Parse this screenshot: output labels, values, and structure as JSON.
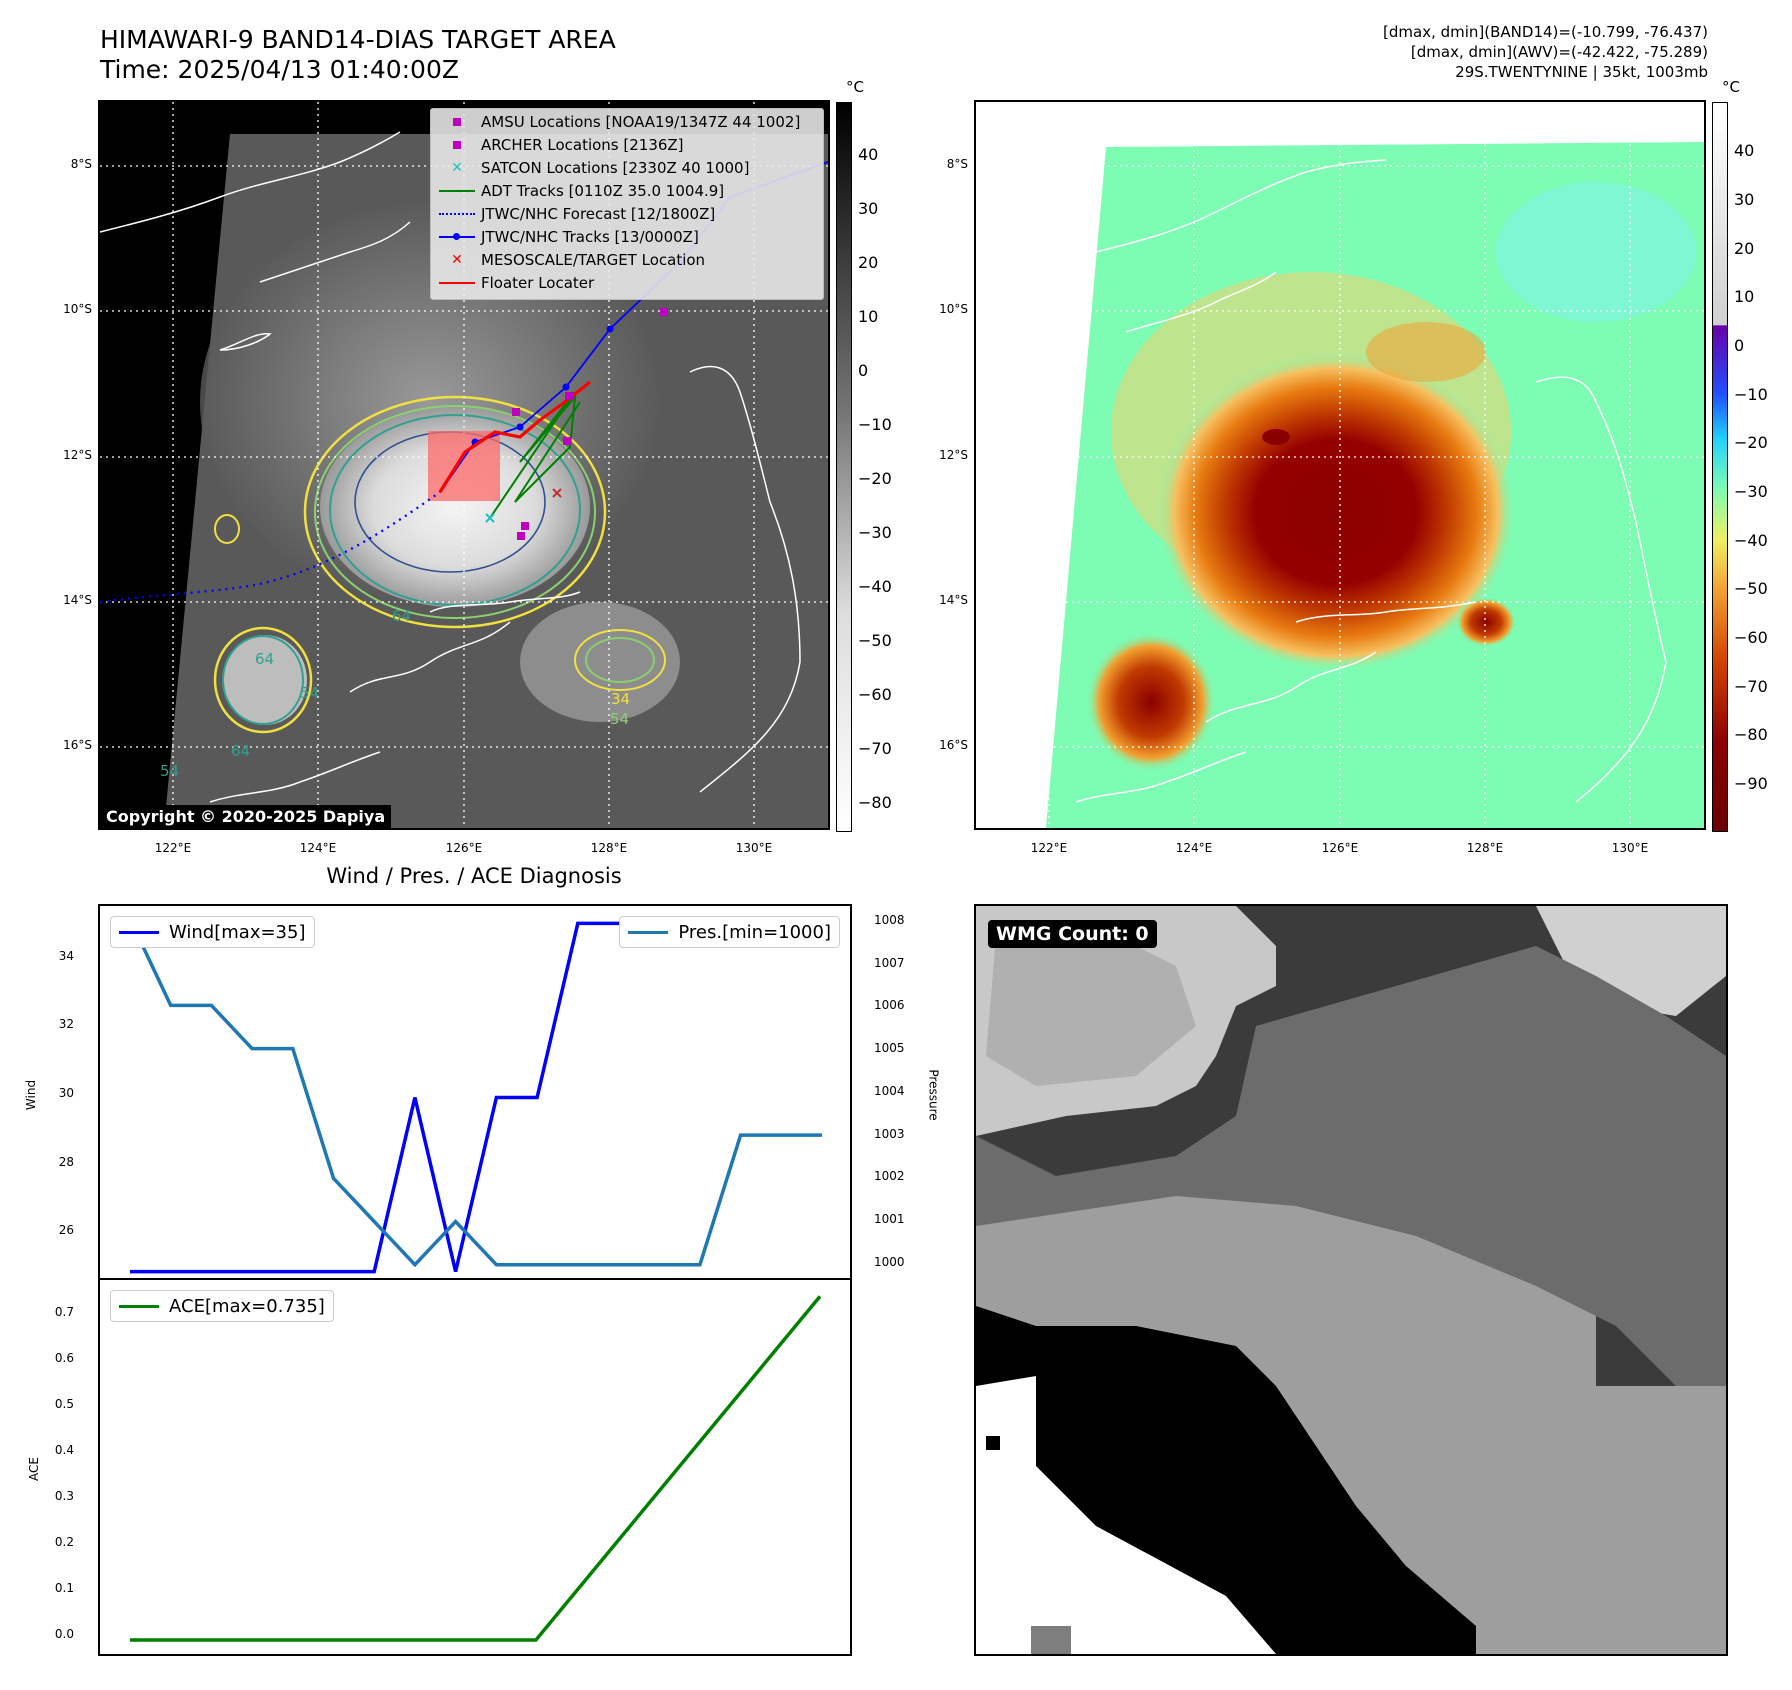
{
  "header": {
    "title_line1": "HIMAWARI-9 BAND14-DIAS TARGET AREA",
    "title_line2": "Time: 2025/04/13 01:40:00Z",
    "info_line1": "[dmax, dmin](BAND14)=(-10.799, -76.437)",
    "info_line2": "[dmax, dmin](AWV)=(-42.422, -75.289)",
    "info_line3": "29S.TWENTYNINE | 35kt, 1003mb"
  },
  "map": {
    "lat_labels": [
      "8°S",
      "10°S",
      "12°S",
      "14°S",
      "16°S"
    ],
    "lon_labels": [
      "122°E",
      "124°E",
      "126°E",
      "128°E",
      "130°E"
    ],
    "colorbar_unit": "°C",
    "bw_colorbar_ticks": [
      "40",
      "30",
      "20",
      "10",
      "0",
      "−10",
      "−20",
      "−30",
      "−40",
      "−50",
      "−60",
      "−70",
      "−80"
    ],
    "color_colorbar_ticks": [
      "40",
      "30",
      "20",
      "10",
      "0",
      "−10",
      "−20",
      "−30",
      "−40",
      "−50",
      "−60",
      "−70",
      "−80",
      "−90"
    ],
    "copyright": "Copyright © 2020-2025 Dapiya",
    "contour_labels": [
      "64",
      "64",
      "64",
      "54",
      "54",
      "34",
      "54"
    ],
    "legend": [
      {
        "label": "AMSU Locations [NOAA19/1347Z 44 1002]",
        "symbol": "square",
        "color": "#c000c0"
      },
      {
        "label": "ARCHER Locations [2136Z]",
        "symbol": "square",
        "color": "#c000c0"
      },
      {
        "label": "SATCON Locations [2330Z 40 1000]",
        "symbol": "x",
        "color": "#20c0c0"
      },
      {
        "label": "ADT Tracks [0110Z 35.0 1004.9]",
        "symbol": "line",
        "color": "#008000"
      },
      {
        "label": "JTWC/NHC Forecast [12/1800Z]",
        "symbol": "dotted",
        "color": "#0000ff"
      },
      {
        "label": "JTWC/NHC Tracks [13/0000Z]",
        "symbol": "line-dot",
        "color": "#0000ff"
      },
      {
        "label": "MESOSCALE/TARGET Location",
        "symbol": "x",
        "color": "#ff0000"
      },
      {
        "label": "Floater Locater",
        "symbol": "line",
        "color": "#ff0000"
      }
    ]
  },
  "diagnosis": {
    "title": "Wind / Pres. / ACE Diagnosis",
    "wind_label": "Wind",
    "pressure_label": "Pressure",
    "ace_label": "ACE",
    "legend_wind": "Wind[max=35]",
    "legend_pres": "Pres.[min=1000]",
    "legend_ace": "ACE[max=0.735]",
    "wind_ticks": [
      "34",
      "32",
      "30",
      "28",
      "26"
    ],
    "pres_ticks": [
      "1008",
      "1007",
      "1006",
      "1005",
      "1004",
      "1003",
      "1002",
      "1001",
      "1000"
    ],
    "ace_ticks": [
      "0.7",
      "0.6",
      "0.5",
      "0.4",
      "0.3",
      "0.2",
      "0.1",
      "0.0"
    ]
  },
  "wmg": {
    "label": "WMG Count: 0"
  },
  "chart_data": [
    {
      "type": "line",
      "title": "Wind / Pres. / ACE Diagnosis",
      "ylabel": "Wind",
      "ylim": [
        24.7,
        35.5
      ],
      "series": [
        {
          "name": "Wind[max=35]",
          "color": "#0000ff",
          "x": [
            0,
            1,
            2,
            3,
            4,
            5,
            6,
            7,
            8,
            9,
            10,
            11,
            12,
            13,
            14,
            15,
            16,
            17
          ],
          "values": [
            25,
            25,
            25,
            25,
            25,
            25,
            25,
            30,
            25,
            30,
            30,
            35,
            35,
            35,
            35,
            35,
            35,
            35
          ]
        }
      ]
    },
    {
      "type": "line",
      "ylabel": "Pressure",
      "ylim": [
        999.6,
        1008.3
      ],
      "series": [
        {
          "name": "Pres.[min=1000]",
          "color": "#1f77b4",
          "x": [
            0,
            1,
            2,
            3,
            4,
            5,
            6,
            7,
            8,
            9,
            10,
            11,
            12,
            13,
            14,
            15,
            16,
            17
          ],
          "values": [
            1008,
            1006,
            1006,
            1005,
            1005,
            1002,
            1001,
            1000,
            1001,
            1000,
            1000,
            1000,
            1000,
            1000,
            1000,
            1003,
            1003,
            1003
          ]
        }
      ]
    },
    {
      "type": "line",
      "ylabel": "ACE",
      "ylim": [
        -0.03,
        0.77
      ],
      "series": [
        {
          "name": "ACE[max=0.735]",
          "color": "#008000",
          "x": [
            0,
            1,
            2,
            3,
            4,
            5,
            6,
            7,
            8,
            9,
            10,
            17
          ],
          "values": [
            0,
            0,
            0,
            0,
            0,
            0,
            0,
            0,
            0,
            0,
            0,
            0.735
          ]
        }
      ]
    }
  ]
}
